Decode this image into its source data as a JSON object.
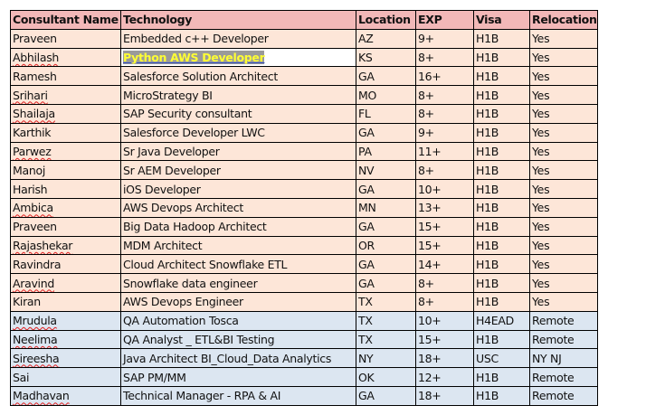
{
  "columns": [
    "Consultant Name",
    "Technology",
    "Location",
    "EXP",
    "Visa",
    "Relocation"
  ],
  "colors": {
    "header": "#f2b8b8",
    "peach_rows": "#fde6d8",
    "blue_rows": "#dce6f1",
    "highlight_bg": "#9a9a9a",
    "highlight_text": "#ffff33"
  },
  "rows": [
    {
      "name": "Praveen",
      "tech": "Embedded c++ Developer",
      "loc": "AZ",
      "exp": "9+",
      "visa": "H1B",
      "reloc": "Yes",
      "group": "peach"
    },
    {
      "name": "Abhilash",
      "tech": "Python AWS Developer",
      "loc": "KS",
      "exp": "8+",
      "visa": "H1B",
      "reloc": "Yes",
      "group": "peach",
      "highlight": true
    },
    {
      "name": "Ramesh",
      "tech": "Salesforce Solution Architect",
      "loc": "GA",
      "exp": "16+",
      "visa": "H1B",
      "reloc": "Yes",
      "group": "peach"
    },
    {
      "name": "Srihari",
      "tech": "MicroStrategy BI",
      "loc": "MO",
      "exp": "8+",
      "visa": "H1B",
      "reloc": "Yes",
      "group": "peach"
    },
    {
      "name": "Shailaja",
      "tech": "SAP Security consultant",
      "loc": "FL",
      "exp": "8+",
      "visa": "H1B",
      "reloc": "Yes",
      "group": "peach"
    },
    {
      "name": "Karthik",
      "tech": "Salesforce Developer LWC",
      "loc": "GA",
      "exp": "9+",
      "visa": "H1B",
      "reloc": "Yes",
      "group": "peach"
    },
    {
      "name": "Parwez",
      "tech": "Sr Java Developer",
      "loc": "PA",
      "exp": "11+",
      "visa": "H1B",
      "reloc": "Yes",
      "group": "peach"
    },
    {
      "name": "Manoj",
      "tech": "Sr AEM Developer",
      "loc": "NV",
      "exp": "8+",
      "visa": "H1B",
      "reloc": "Yes",
      "group": "peach"
    },
    {
      "name": "Harish",
      "tech": "iOS Developer",
      "loc": "GA",
      "exp": "10+",
      "visa": "H1B",
      "reloc": "Yes",
      "group": "peach"
    },
    {
      "name": "Ambica",
      "tech": "AWS Devops Architect",
      "loc": "MN",
      "exp": "13+",
      "visa": "H1B",
      "reloc": "Yes",
      "group": "peach"
    },
    {
      "name": "Praveen",
      "tech": "Big Data Hadoop Architect",
      "loc": "GA",
      "exp": "15+",
      "visa": "H1B",
      "reloc": "Yes",
      "group": "peach"
    },
    {
      "name": "Rajashekar",
      "tech": "MDM Architect",
      "loc": "OR",
      "exp": "15+",
      "visa": "H1B",
      "reloc": "Yes",
      "group": "peach"
    },
    {
      "name": "Ravindra",
      "tech": "Cloud Architect Snowflake ETL",
      "loc": "GA",
      "exp": "14+",
      "visa": "H1B",
      "reloc": "Yes",
      "group": "peach"
    },
    {
      "name": "Aravind",
      "tech": "Snowflake data engineer",
      "loc": "GA",
      "exp": "8+",
      "visa": "H1B",
      "reloc": "Yes",
      "group": "peach"
    },
    {
      "name": "Kiran",
      "tech": "AWS Devops Engineer",
      "loc": "TX",
      "exp": "8+",
      "visa": "H1B",
      "reloc": "Yes",
      "group": "peach"
    },
    {
      "name": "Mrudula",
      "tech": "QA Automation Tosca",
      "loc": "TX",
      "exp": "10+",
      "visa": "H4EAD",
      "reloc": "Remote",
      "group": "blue"
    },
    {
      "name": "Neelima",
      "tech": "QA Analyst _ ETL&BI Testing",
      "loc": "TX",
      "exp": "15+",
      "visa": "H1B",
      "reloc": "Remote",
      "group": "blue"
    },
    {
      "name": "Sireesha",
      "tech": "Java Architect BI_Cloud_Data Analytics",
      "loc": "NY",
      "exp": "18+",
      "visa": "USC",
      "reloc": "NY NJ",
      "group": "blue"
    },
    {
      "name": "Sai",
      "tech": "SAP PM/MM",
      "loc": "OK",
      "exp": "12+",
      "visa": "H1B",
      "reloc": "Remote",
      "group": "blue"
    },
    {
      "name": "Madhavan",
      "tech": "Technical Manager - RPA & AI",
      "loc": "GA",
      "exp": "18+",
      "visa": "H1B",
      "reloc": "Remote",
      "group": "blue"
    }
  ]
}
